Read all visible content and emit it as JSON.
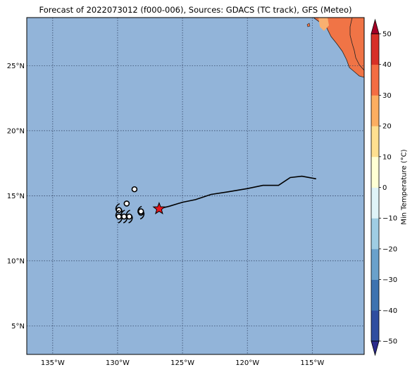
{
  "title": "Forecast of 2022073012 (f000-006), Sources: GDACS (TC track), GFS (Meteo)",
  "colorbar": {
    "label": "Min Temperature (°C)",
    "ticks": [
      50,
      40,
      30,
      20,
      10,
      0,
      -10,
      -20,
      -30,
      -40,
      -50
    ],
    "tick_labels": [
      "50",
      "40",
      "30",
      "20",
      "10",
      "0",
      "−10",
      "−20",
      "−30",
      "−40",
      "−50"
    ],
    "colors": [
      "#2b2b8c",
      "#2f4ea0",
      "#3e73b0",
      "#6aa1cb",
      "#9fcde3",
      "#e0f3f8",
      "#ffffd4",
      "#fee090",
      "#fcae61",
      "#f46d43",
      "#d73027",
      "#a50026"
    ]
  },
  "map": {
    "ocean_color": "#92b4d9",
    "land_color": "#f07446",
    "land_light_color": "#f9b070",
    "lon_ticks": [
      -135,
      -130,
      -125,
      -120,
      -115
    ],
    "lon_labels": [
      "135°W",
      "130°W",
      "125°W",
      "120°W",
      "115°W"
    ],
    "lat_ticks": [
      25,
      20,
      15,
      10,
      5
    ],
    "lat_labels": [
      "25°N",
      "20°N",
      "15°N",
      "10°N",
      "5°N"
    ],
    "lon_range": [
      -137.0,
      -111.0
    ],
    "lat_range": [
      2.8,
      28.7
    ]
  },
  "track": [
    [
      -126.8,
      14.0
    ],
    [
      -126.0,
      14.2
    ],
    [
      -125.0,
      14.5
    ],
    [
      -124.0,
      14.7
    ],
    [
      -122.8,
      15.1
    ],
    [
      -121.5,
      15.3
    ],
    [
      -120.0,
      15.55
    ],
    [
      -118.8,
      15.8
    ],
    [
      -117.6,
      15.8
    ],
    [
      -116.7,
      16.4
    ],
    [
      -115.8,
      16.5
    ],
    [
      -114.7,
      16.3
    ]
  ],
  "current_position": [
    -126.8,
    14.0
  ],
  "tc_symbols": [
    {
      "lon": -128.2,
      "lat": 13.7,
      "type": "storm"
    },
    {
      "lon": -128.2,
      "lat": 13.8,
      "type": "depression"
    },
    {
      "lon": -128.7,
      "lat": 15.5,
      "type": "depression"
    },
    {
      "lon": -129.3,
      "lat": 14.4,
      "type": "depression"
    },
    {
      "lon": -129.5,
      "lat": 13.4,
      "type": "storm"
    },
    {
      "lon": -129.9,
      "lat": 13.9,
      "type": "storm"
    },
    {
      "lon": -129.9,
      "lat": 13.4,
      "type": "storm"
    },
    {
      "lon": -129.1,
      "lat": 13.4,
      "type": "storm"
    }
  ]
}
